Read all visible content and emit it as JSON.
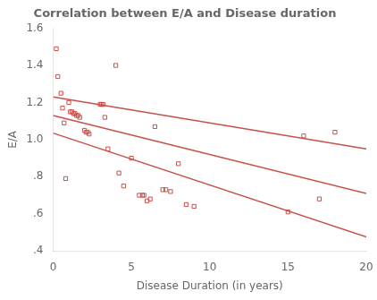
{
  "chart_data": {
    "type": "scatter",
    "title": "Correlation between E/A and Disease duration",
    "xlabel": "Disease Duration (in years)",
    "ylabel": "E/A",
    "xlim": [
      0,
      20
    ],
    "ylim": [
      0.4,
      1.6
    ],
    "xticks": [
      0,
      5,
      10,
      15,
      20
    ],
    "yticks": [
      {
        "value": 0.4,
        "label": ".4"
      },
      {
        "value": 0.6,
        "label": ".6"
      },
      {
        "value": 0.8,
        "label": ".8"
      },
      {
        "value": 1.0,
        "label": "1.0"
      },
      1.2,
      1.4,
      1.6
    ],
    "grid": false,
    "series": [
      {
        "type": "scatter",
        "marker": "square",
        "color": "#C8504A",
        "x": [
          0.2,
          0.3,
          0.5,
          0.6,
          0.7,
          0.8,
          1.0,
          1.1,
          1.2,
          1.3,
          1.4,
          1.5,
          1.6,
          1.7,
          2.0,
          2.1,
          2.2,
          2.3,
          3.0,
          3.1,
          3.2,
          3.3,
          3.5,
          4.0,
          4.2,
          4.5,
          5.0,
          5.5,
          5.7,
          5.8,
          6.0,
          6.2,
          6.5,
          7.0,
          7.2,
          7.5,
          8.0,
          8.5,
          9.0,
          15.0,
          16.0,
          17.0,
          18.0
        ],
        "values": [
          1.49,
          1.34,
          1.25,
          1.17,
          1.09,
          0.79,
          1.2,
          1.15,
          1.15,
          1.14,
          1.14,
          1.13,
          1.13,
          1.12,
          1.05,
          1.04,
          1.04,
          1.03,
          1.19,
          1.19,
          1.19,
          1.12,
          0.95,
          1.4,
          0.82,
          0.75,
          0.9,
          0.7,
          0.7,
          0.7,
          0.67,
          0.68,
          1.07,
          0.73,
          0.73,
          0.72,
          0.87,
          0.65,
          0.64,
          0.61,
          1.02,
          0.68,
          1.04
        ]
      },
      {
        "type": "line",
        "line_style": "solid",
        "color": "#C8504A",
        "x": [
          0,
          20
        ],
        "values": [
          1.13,
          0.71
        ]
      },
      {
        "type": "line",
        "line_style": "solid",
        "color": "#C8504A",
        "x": [
          0,
          20
        ],
        "values": [
          1.23,
          0.95
        ]
      },
      {
        "type": "line",
        "line_style": "solid",
        "color": "#C8504A",
        "x": [
          0,
          20
        ],
        "values": [
          1.035,
          0.475
        ]
      }
    ]
  }
}
